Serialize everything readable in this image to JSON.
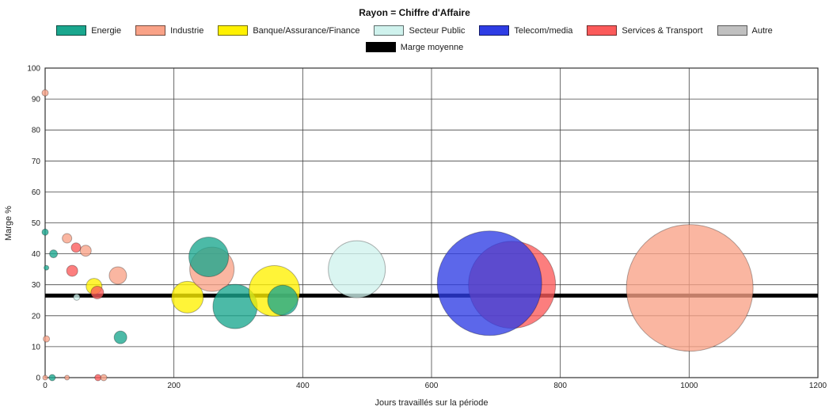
{
  "chart": {
    "title": "Rayon = Chiffre d'Affaire"
  },
  "legend": {
    "items": [
      {
        "label": "Energie",
        "color": "#1aa78e"
      },
      {
        "label": "Industrie",
        "color": "#f9a287"
      },
      {
        "label": "Banque/Assurance/Finance",
        "color": "#fff100"
      },
      {
        "label": "Secteur Public",
        "color": "#cff2ed"
      },
      {
        "label": "Telecom/media",
        "color": "#2e3ce4"
      },
      {
        "label": "Services & Transport",
        "color": "#fb5a5a"
      },
      {
        "label": "Autre",
        "color": "#c0c0c0"
      }
    ],
    "average": {
      "label": "Marge moyenne",
      "color": "#000000"
    }
  },
  "chart_data": {
    "type": "scatter",
    "subtype": "bubble",
    "title": "Rayon = Chiffre d'Affaire",
    "xlabel": "Jours travaillés sur la période",
    "ylabel": "Marge %",
    "xlim": [
      0,
      1200
    ],
    "ylim": [
      0,
      100
    ],
    "xticks": [
      0,
      200,
      400,
      600,
      800,
      1000,
      1200
    ],
    "yticks": [
      0,
      10,
      20,
      30,
      40,
      50,
      60,
      70,
      80,
      90,
      100
    ],
    "grid": true,
    "legend_position": "top",
    "average_margin": {
      "label": "Marge moyenne",
      "value": 26.5
    },
    "bubble_opacity": 0.78,
    "bubbles": [
      {
        "category": "Industrie",
        "x": 0,
        "y": 92,
        "r": 4
      },
      {
        "category": "Energie",
        "x": 0,
        "y": 47,
        "r": 4
      },
      {
        "category": "Energie",
        "x": 13,
        "y": 40,
        "r": 5
      },
      {
        "category": "Industrie",
        "x": 34,
        "y": 45,
        "r": 6
      },
      {
        "category": "Services & Transport",
        "x": 48,
        "y": 42,
        "r": 6
      },
      {
        "category": "Industrie",
        "x": 63,
        "y": 41,
        "r": 7
      },
      {
        "category": "Energie",
        "x": 2,
        "y": 35.5,
        "r": 3
      },
      {
        "category": "Services & Transport",
        "x": 42,
        "y": 34.5,
        "r": 7
      },
      {
        "category": "Secteur Public",
        "x": 49,
        "y": 26,
        "r": 4
      },
      {
        "category": "Banque/Assurance/Finance",
        "x": 76,
        "y": 29.5,
        "r": 10
      },
      {
        "category": "Services & Transport",
        "x": 81,
        "y": 27.5,
        "r": 8
      },
      {
        "category": "Industrie",
        "x": 113,
        "y": 33,
        "r": 11
      },
      {
        "category": "Energie",
        "x": 117,
        "y": 13,
        "r": 8
      },
      {
        "category": "Industrie",
        "x": 2,
        "y": 12.5,
        "r": 4
      },
      {
        "category": "Industrie",
        "x": 0,
        "y": 0,
        "r": 3
      },
      {
        "category": "Energie",
        "x": 11,
        "y": 0,
        "r": 4
      },
      {
        "category": "Industrie",
        "x": 34,
        "y": 0,
        "r": 3
      },
      {
        "category": "Services & Transport",
        "x": 82,
        "y": 0,
        "r": 4
      },
      {
        "category": "Industrie",
        "x": 91,
        "y": 0,
        "r": 4
      },
      {
        "category": "Banque/Assurance/Finance",
        "x": 221,
        "y": 26,
        "r": 20
      },
      {
        "category": "Industrie",
        "x": 259,
        "y": 35,
        "r": 28
      },
      {
        "category": "Energie",
        "x": 254,
        "y": 39,
        "r": 25
      },
      {
        "category": "Energie",
        "x": 295,
        "y": 23,
        "r": 28
      },
      {
        "category": "Banque/Assurance/Finance",
        "x": 356,
        "y": 28,
        "r": 32
      },
      {
        "category": "Energie",
        "x": 369,
        "y": 25,
        "r": 19
      },
      {
        "category": "Secteur Public",
        "x": 484,
        "y": 35,
        "r": 36
      },
      {
        "category": "Services & Transport",
        "x": 725,
        "y": 30,
        "r": 55
      },
      {
        "category": "Telecom/media",
        "x": 690,
        "y": 30.5,
        "r": 66
      },
      {
        "category": "Industrie",
        "x": 1001,
        "y": 29,
        "r": 80
      }
    ]
  }
}
